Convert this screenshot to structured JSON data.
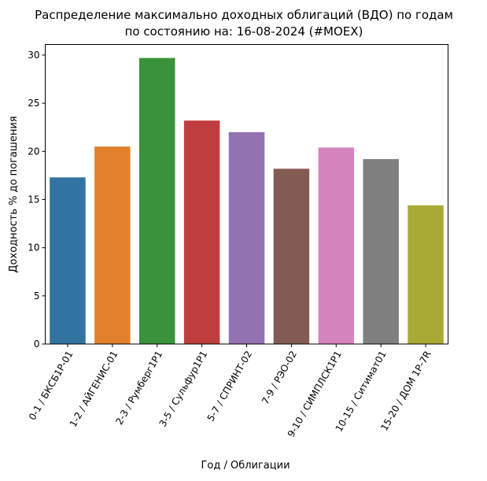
{
  "chart_data": {
    "type": "bar",
    "title": "Распределение максимально доходных облигаций (ВДО) по годам",
    "subtitle": "по состоянию на: 16-08-2024 (#MOEX)",
    "xlabel": "Год / Облигации",
    "ylabel": "Доходность % до погашения",
    "ylim": [
      0,
      31.1
    ],
    "yticks": [
      0,
      5,
      10,
      15,
      20,
      25,
      30
    ],
    "grid": false,
    "categories": [
      "0-1 / БКСБ1Р-01",
      "1-2 / АЙГЕНИС-01",
      "2-3 / Румберг1Р1",
      "3-5 / Сульфур1Р1",
      "5-7 / СПРИНТ-02",
      "7-9 / РЭО-02",
      "9-10 / СИМПЛСК1Р1",
      "10-15 / Ситимат01",
      "15-20 / ДОМ 1Р-7R"
    ],
    "values": [
      17.3,
      20.5,
      29.7,
      23.2,
      22.0,
      18.2,
      20.4,
      19.2,
      14.4
    ],
    "colors": [
      "#3274a1",
      "#e1812c",
      "#3a923a",
      "#c03d3e",
      "#9372b2",
      "#845b53",
      "#d684bd",
      "#7f7f7f",
      "#a9aa35"
    ]
  }
}
